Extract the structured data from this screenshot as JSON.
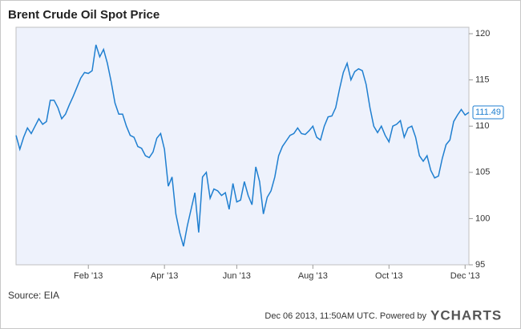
{
  "chart_data": {
    "type": "line",
    "title": "Brent Crude Oil Spot Price",
    "source": "Source: EIA",
    "footer": "Dec 06 2013, 11:50AM UTC. Powered by",
    "brand": "YCHARTS",
    "color": "#1f7fd0",
    "grid": false,
    "ylim": [
      95,
      120
    ],
    "yticks": [
      95,
      100,
      105,
      110,
      115,
      120
    ],
    "categories": [
      null,
      null,
      null,
      null,
      null,
      null,
      null,
      null,
      null,
      null,
      null,
      null,
      null,
      null,
      null,
      null,
      null,
      null,
      null,
      "Feb '13",
      null,
      null,
      null,
      null,
      null,
      null,
      null,
      null,
      null,
      null,
      null,
      null,
      null,
      null,
      null,
      null,
      null,
      null,
      null,
      "Apr '13",
      null,
      null,
      null,
      null,
      null,
      null,
      null,
      null,
      null,
      null,
      null,
      null,
      null,
      null,
      null,
      null,
      null,
      null,
      "Jun '13",
      null,
      null,
      null,
      null,
      null,
      null,
      null,
      null,
      null,
      null,
      null,
      null,
      null,
      null,
      null,
      null,
      null,
      null,
      null,
      "Aug '13",
      null,
      null,
      null,
      null,
      null,
      null,
      null,
      null,
      null,
      null,
      null,
      null,
      null,
      null,
      null,
      null,
      null,
      null,
      null,
      "Oct '13",
      null,
      null,
      null,
      null,
      null,
      null,
      null,
      null,
      null,
      null,
      null,
      null,
      null,
      null,
      null,
      null,
      null,
      null,
      null,
      "Dec '13",
      null
    ],
    "values": [
      109,
      107.5,
      108.8,
      109.8,
      109.2,
      110,
      110.8,
      110.2,
      110.5,
      112.8,
      112.8,
      112,
      110.8,
      111.3,
      112.3,
      113.2,
      114.2,
      115.2,
      115.8,
      115.7,
      116,
      118.8,
      117.5,
      118.3,
      116.8,
      114.8,
      112.5,
      111.3,
      111.3,
      110,
      109,
      108.8,
      107.8,
      107.6,
      106.8,
      106.6,
      107.2,
      108.7,
      109.2,
      107.5,
      103.5,
      104.5,
      100.5,
      98.5,
      97,
      99.2,
      101,
      102.8,
      98.5,
      104.5,
      105,
      102.2,
      103.2,
      103,
      102.5,
      102.8,
      101,
      103.8,
      101.8,
      102,
      104,
      102.5,
      101.5,
      105.6,
      104,
      100.5,
      102.3,
      103,
      104.5,
      106.8,
      107.8,
      108.4,
      109,
      109.2,
      109.8,
      109.2,
      109.1,
      109.5,
      110,
      108.8,
      108.5,
      110,
      111,
      111.1,
      112,
      114,
      115.8,
      116.8,
      115,
      115.9,
      116.2,
      116,
      114.5,
      112,
      110,
      109.3,
      110,
      109,
      108.3,
      110,
      110.2,
      110.6,
      108.8,
      109.8,
      110,
      108.8,
      106.8,
      106.2,
      106.8,
      105.2,
      104.4,
      104.6,
      106.5,
      108,
      108.5,
      110.5,
      111.2,
      111.8,
      111.2,
      111.49
    ]
  }
}
